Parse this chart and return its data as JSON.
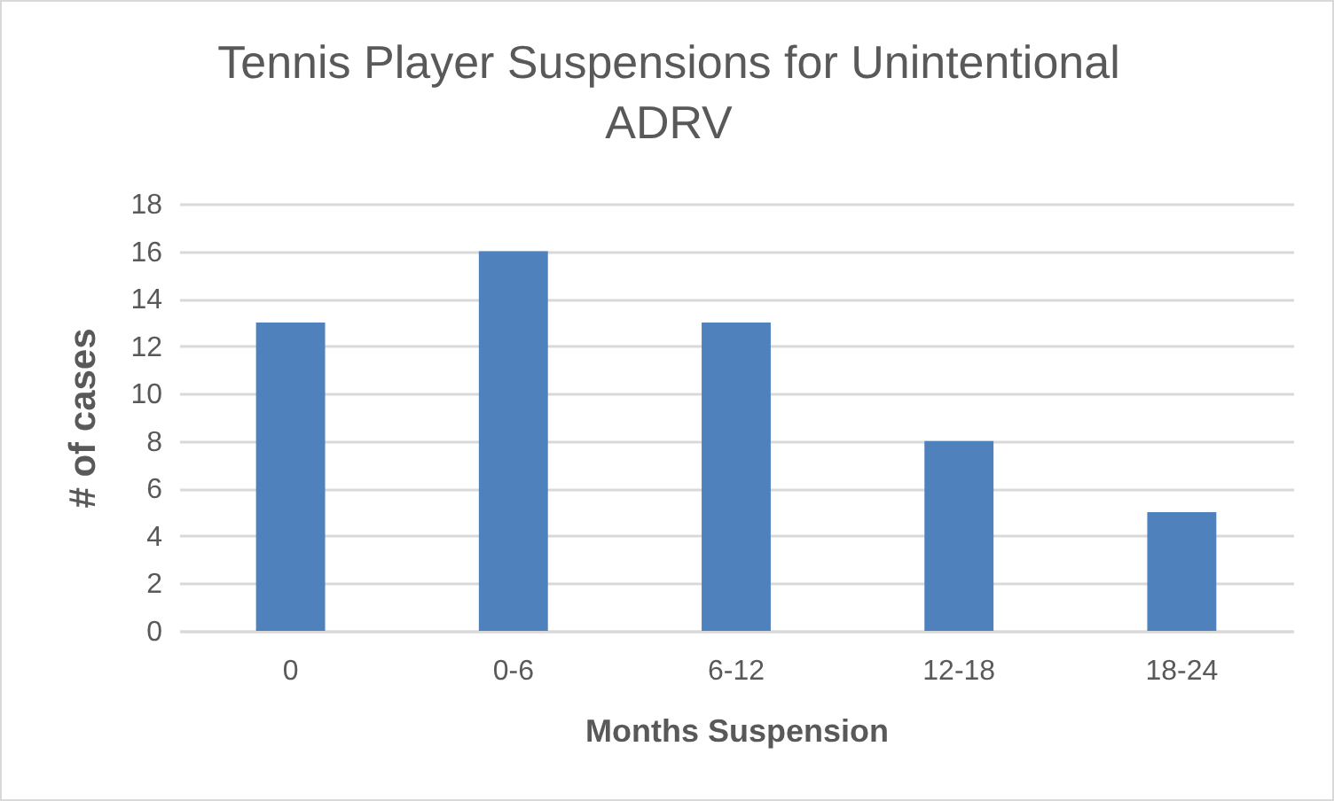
{
  "chart_data": {
    "type": "bar",
    "title": "Tennis Player Suspensions for Unintentional ADRV",
    "xlabel": "Months Suspension",
    "ylabel": "# of cases",
    "categories": [
      "0",
      "0-6",
      "6-12",
      "12-18",
      "18-24"
    ],
    "values": [
      13,
      16,
      13,
      8,
      5
    ],
    "color": "#4f81bd",
    "ylim": [
      0,
      18
    ],
    "yticks": [
      0,
      2,
      4,
      6,
      8,
      10,
      12,
      14,
      16,
      18
    ],
    "grid": "y"
  }
}
